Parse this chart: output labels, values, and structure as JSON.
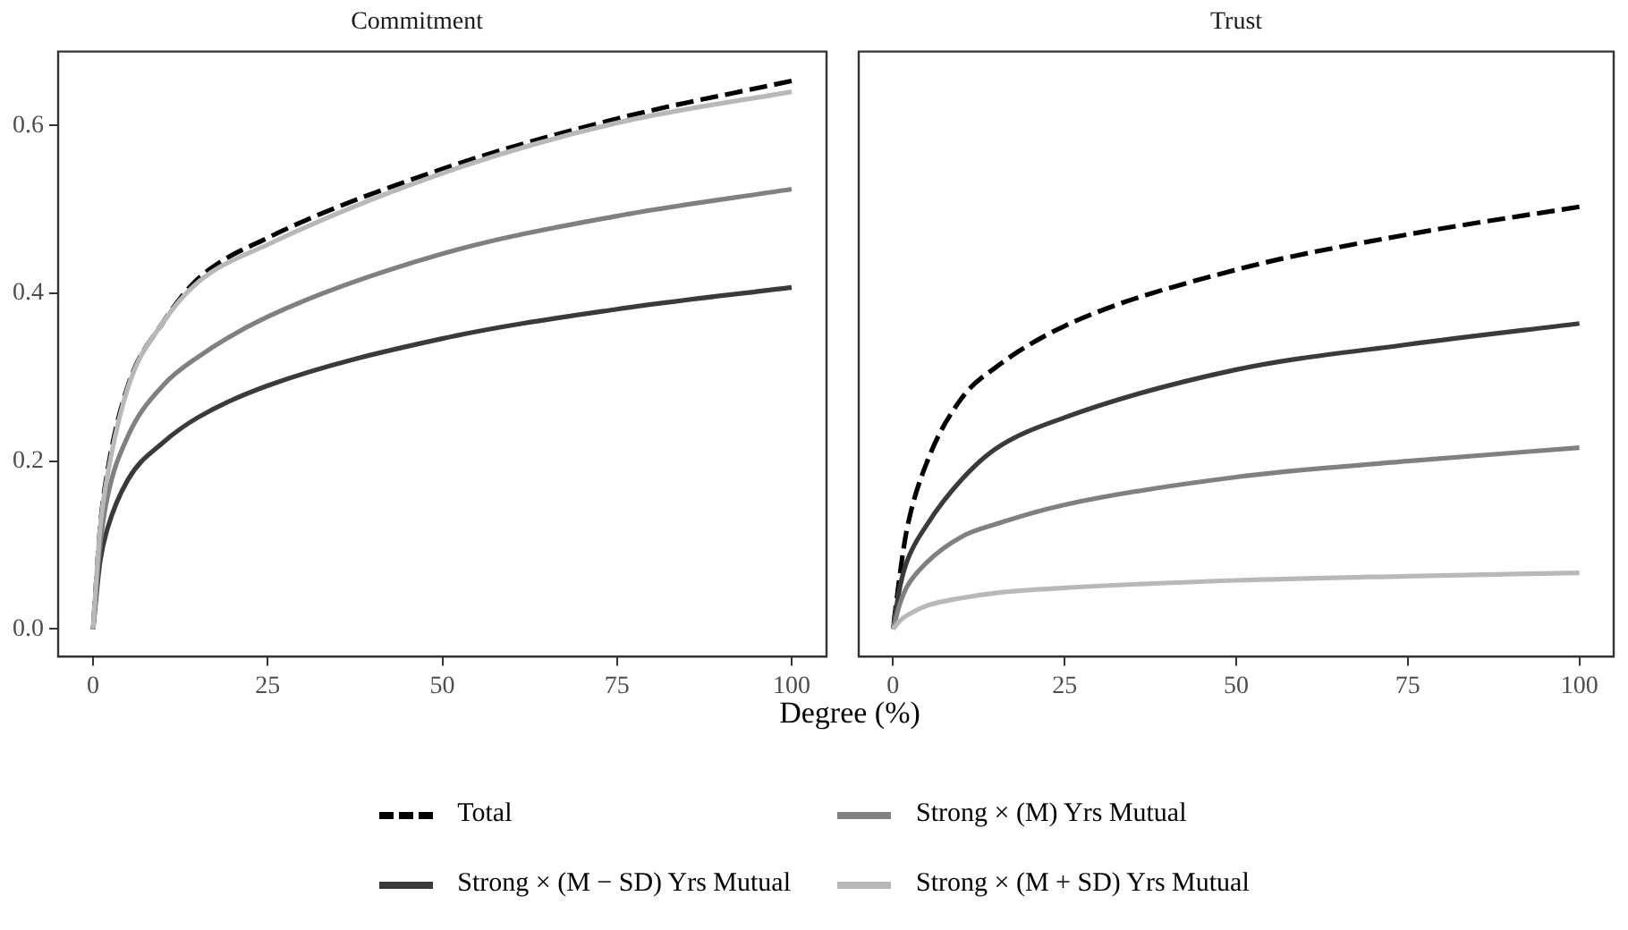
{
  "chart_data": [
    {
      "type": "line",
      "title": "Commitment",
      "xlabel": "Degree (%)",
      "legend": "bottom",
      "line_style": "solid",
      "x": [
        0,
        1,
        2,
        5,
        10,
        15,
        25,
        50,
        75,
        100
      ],
      "xlim": [
        -5,
        105
      ],
      "xticks": [
        0,
        25,
        50,
        75,
        100
      ],
      "ylim": [
        -0.033,
        0.688
      ],
      "yticks": [
        {
          "value": 0,
          "label": "0.0"
        },
        {
          "value": 0.2,
          "label": "0.2"
        },
        {
          "value": 0.4,
          "label": "0.4"
        },
        {
          "value": 0.6,
          "label": "0.6"
        }
      ],
      "grid": false,
      "series": [
        {
          "name": "Total",
          "color": "#000000",
          "line_style": "dashed",
          "values": [
            0,
            0.12,
            0.185,
            0.29,
            0.365,
            0.417,
            0.466,
            0.548,
            0.608,
            0.653
          ]
        },
        {
          "name": "Strong × (M − SD) Yrs Mutual",
          "color": "#3a3a3a",
          "values": [
            0,
            0.08,
            0.118,
            0.178,
            0.222,
            0.252,
            0.29,
            0.346,
            0.381,
            0.407
          ]
        },
        {
          "name": "Strong × (M) Yrs Mutual",
          "color": "#808080",
          "values": [
            0,
            0.1,
            0.155,
            0.23,
            0.29,
            0.324,
            0.372,
            0.447,
            0.492,
            0.524
          ]
        },
        {
          "name": "Strong × (M + SD) Yrs Mutual",
          "color": "#b8b8b8",
          "values": [
            0,
            0.12,
            0.18,
            0.288,
            0.365,
            0.413,
            0.458,
            0.543,
            0.603,
            0.64
          ]
        }
      ]
    },
    {
      "type": "line",
      "title": "Trust",
      "tick_labels": "x",
      "line_style": "solid",
      "x": [
        0,
        1,
        2,
        5,
        10,
        15,
        25,
        50,
        75,
        100
      ],
      "xlim": [
        -5,
        105
      ],
      "xticks": [
        0,
        25,
        50,
        75,
        100
      ],
      "ylim": [
        -0.033,
        0.688
      ],
      "grid": false,
      "series": [
        {
          "color": "#000000",
          "line_style": "dashed",
          "values": [
            0,
            0.065,
            0.118,
            0.2,
            0.275,
            0.312,
            0.361,
            0.428,
            0.47,
            0.503
          ]
        },
        {
          "color": "#3a3a3a",
          "values": [
            0,
            0.05,
            0.08,
            0.125,
            0.178,
            0.215,
            0.252,
            0.309,
            0.339,
            0.364
          ]
        },
        {
          "color": "#808080",
          "values": [
            0,
            0.03,
            0.05,
            0.08,
            0.11,
            0.125,
            0.148,
            0.181,
            0.2,
            0.216
          ]
        },
        {
          "color": "#b8b8b8",
          "values": [
            0,
            0.01,
            0.016,
            0.028,
            0.037,
            0.043,
            0.049,
            0.058,
            0.063,
            0.067
          ]
        }
      ]
    }
  ]
}
